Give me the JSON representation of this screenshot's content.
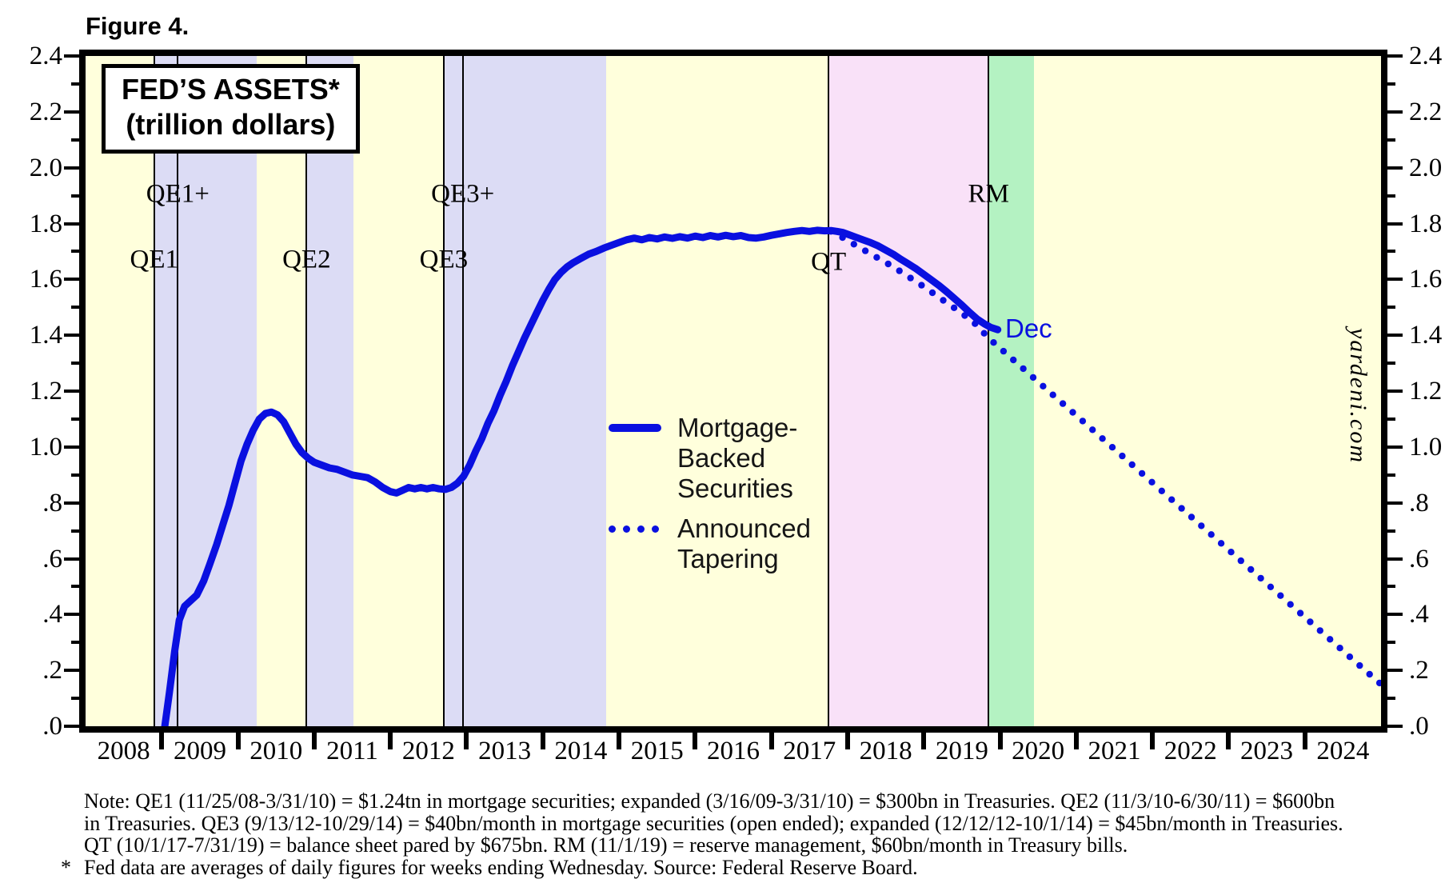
{
  "figure_label": "Figure 4.",
  "title_box": {
    "line1": "FED’S ASSETS*",
    "line2": "(trillion dollars)"
  },
  "watermark": "yardeni.com",
  "end_label": "Dec",
  "legend": {
    "items": [
      {
        "label": "Mortgage-Backed Securities",
        "style": "solid"
      },
      {
        "label": "Announced Tapering",
        "style": "dotted"
      }
    ]
  },
  "notes": {
    "line1": "Note: QE1 (11/25/08-3/31/10) = $1.24tn in mortgage securities; expanded (3/16/09-3/31/10) = $300bn in Treasuries. QE2 (11/3/10-6/30/11) = $600bn",
    "line2": "in Treasuries. QE3 (9/13/12-10/29/14) = $40bn/month in mortgage securities (open ended); expanded (12/12/12-10/1/14) = $45bn/month in Treasuries.",
    "line3": "QT (10/1/17-7/31/19) = balance sheet pared by $675bn. RM (11/1/19) = reserve management, $60bn/month in Treasury bills.",
    "marker": "*",
    "footnote": "Fed data are averages of daily figures for weeks ending Wednesday. Source: Federal Reserve Board."
  },
  "colors": {
    "line_blue": "#0a10e0",
    "band_yellow": "#ffffdc",
    "band_lavender": "#dcdcf5",
    "band_pink": "#f9e1f8",
    "band_green": "#b4f2c2",
    "axis_black": "#000000"
  },
  "chart_data": {
    "type": "line",
    "title": "FED’S ASSETS* (trillion dollars)",
    "x_axis": {
      "min": 2008,
      "max": 2025,
      "year_labels": [
        "2008",
        "2009",
        "2010",
        "2011",
        "2012",
        "2013",
        "2014",
        "2015",
        "2016",
        "2017",
        "2018",
        "2019",
        "2020",
        "2021",
        "2022",
        "2023",
        "2024"
      ]
    },
    "y_axis": {
      "min": 0,
      "max": 2.4,
      "major_step": 0.2,
      "minor_step": 0.1,
      "labels_top_to_bottom": [
        "2.4",
        "2.2",
        "2.0",
        "1.8",
        "1.6",
        "1.4",
        "1.2",
        "1.0",
        ".8",
        ".6",
        ".4",
        ".2",
        ".0"
      ]
    },
    "bands": [
      {
        "name": "QE1",
        "start": 2008.9,
        "end": 2010.25,
        "color_key": "band_lavender"
      },
      {
        "name": "QE2",
        "start": 2010.9,
        "end": 2011.52,
        "color_key": "band_lavender"
      },
      {
        "name": "QE3",
        "start": 2012.7,
        "end": 2014.83,
        "color_key": "band_lavender"
      },
      {
        "name": "QT",
        "start": 2017.75,
        "end": 2019.85,
        "color_key": "band_pink"
      },
      {
        "name": "RM",
        "start": 2019.85,
        "end": 2020.45,
        "color_key": "band_green"
      }
    ],
    "event_lines": [
      {
        "label": "QE1",
        "year": 2008.9,
        "label_y": 1.67
      },
      {
        "label": "QE1+",
        "year": 2009.21,
        "label_y": 1.905
      },
      {
        "label": "QE2",
        "year": 2010.9,
        "label_y": 1.67
      },
      {
        "label": "QE3",
        "year": 2012.7,
        "label_y": 1.67
      },
      {
        "label": "QE3+",
        "year": 2012.95,
        "label_y": 1.905
      },
      {
        "label": "QT",
        "year": 2017.75,
        "label_y": 1.66
      },
      {
        "label": "RM",
        "year": 2019.85,
        "label_y": 1.905
      }
    ],
    "series": [
      {
        "name": "Mortgage-Backed Securities",
        "style": "solid",
        "points": [
          [
            2009.04,
            0.0
          ],
          [
            2009.1,
            0.12
          ],
          [
            2009.17,
            0.27
          ],
          [
            2009.23,
            0.38
          ],
          [
            2009.3,
            0.43
          ],
          [
            2009.38,
            0.45
          ],
          [
            2009.46,
            0.47
          ],
          [
            2009.55,
            0.52
          ],
          [
            2009.63,
            0.58
          ],
          [
            2009.72,
            0.65
          ],
          [
            2009.8,
            0.72
          ],
          [
            2009.88,
            0.79
          ],
          [
            2009.96,
            0.87
          ],
          [
            2010.04,
            0.95
          ],
          [
            2010.12,
            1.01
          ],
          [
            2010.2,
            1.06
          ],
          [
            2010.28,
            1.1
          ],
          [
            2010.36,
            1.12
          ],
          [
            2010.44,
            1.125
          ],
          [
            2010.52,
            1.115
          ],
          [
            2010.6,
            1.09
          ],
          [
            2010.68,
            1.05
          ],
          [
            2010.76,
            1.01
          ],
          [
            2010.84,
            0.98
          ],
          [
            2010.92,
            0.96
          ],
          [
            2011.0,
            0.945
          ],
          [
            2011.1,
            0.935
          ],
          [
            2011.2,
            0.925
          ],
          [
            2011.3,
            0.92
          ],
          [
            2011.4,
            0.91
          ],
          [
            2011.5,
            0.9
          ],
          [
            2011.6,
            0.895
          ],
          [
            2011.7,
            0.89
          ],
          [
            2011.8,
            0.875
          ],
          [
            2011.9,
            0.855
          ],
          [
            2012.0,
            0.84
          ],
          [
            2012.08,
            0.835
          ],
          [
            2012.16,
            0.845
          ],
          [
            2012.24,
            0.855
          ],
          [
            2012.32,
            0.85
          ],
          [
            2012.4,
            0.855
          ],
          [
            2012.48,
            0.85
          ],
          [
            2012.56,
            0.855
          ],
          [
            2012.64,
            0.85
          ],
          [
            2012.72,
            0.848
          ],
          [
            2012.8,
            0.855
          ],
          [
            2012.88,
            0.87
          ],
          [
            2012.96,
            0.895
          ],
          [
            2013.04,
            0.935
          ],
          [
            2013.12,
            0.985
          ],
          [
            2013.2,
            1.03
          ],
          [
            2013.28,
            1.085
          ],
          [
            2013.36,
            1.13
          ],
          [
            2013.44,
            1.185
          ],
          [
            2013.52,
            1.235
          ],
          [
            2013.6,
            1.29
          ],
          [
            2013.68,
            1.34
          ],
          [
            2013.76,
            1.39
          ],
          [
            2013.84,
            1.435
          ],
          [
            2013.92,
            1.48
          ],
          [
            2014.0,
            1.525
          ],
          [
            2014.08,
            1.565
          ],
          [
            2014.16,
            1.6
          ],
          [
            2014.24,
            1.625
          ],
          [
            2014.32,
            1.645
          ],
          [
            2014.4,
            1.66
          ],
          [
            2014.5,
            1.675
          ],
          [
            2014.6,
            1.69
          ],
          [
            2014.7,
            1.7
          ],
          [
            2014.8,
            1.712
          ],
          [
            2014.9,
            1.722
          ],
          [
            2015.0,
            1.732
          ],
          [
            2015.1,
            1.742
          ],
          [
            2015.2,
            1.748
          ],
          [
            2015.3,
            1.742
          ],
          [
            2015.4,
            1.75
          ],
          [
            2015.5,
            1.745
          ],
          [
            2015.6,
            1.752
          ],
          [
            2015.7,
            1.747
          ],
          [
            2015.8,
            1.753
          ],
          [
            2015.9,
            1.748
          ],
          [
            2016.0,
            1.755
          ],
          [
            2016.1,
            1.75
          ],
          [
            2016.2,
            1.757
          ],
          [
            2016.3,
            1.752
          ],
          [
            2016.4,
            1.758
          ],
          [
            2016.5,
            1.753
          ],
          [
            2016.6,
            1.757
          ],
          [
            2016.7,
            1.75
          ],
          [
            2016.8,
            1.748
          ],
          [
            2016.9,
            1.752
          ],
          [
            2017.0,
            1.758
          ],
          [
            2017.1,
            1.763
          ],
          [
            2017.2,
            1.768
          ],
          [
            2017.3,
            1.772
          ],
          [
            2017.4,
            1.775
          ],
          [
            2017.5,
            1.772
          ],
          [
            2017.6,
            1.776
          ],
          [
            2017.7,
            1.774
          ],
          [
            2017.78,
            1.775
          ],
          [
            2017.86,
            1.772
          ],
          [
            2017.94,
            1.768
          ],
          [
            2018.02,
            1.76
          ],
          [
            2018.1,
            1.752
          ],
          [
            2018.2,
            1.742
          ],
          [
            2018.3,
            1.732
          ],
          [
            2018.4,
            1.72
          ],
          [
            2018.5,
            1.705
          ],
          [
            2018.6,
            1.69
          ],
          [
            2018.7,
            1.672
          ],
          [
            2018.8,
            1.655
          ],
          [
            2018.9,
            1.638
          ],
          [
            2019.0,
            1.618
          ],
          [
            2019.1,
            1.598
          ],
          [
            2019.2,
            1.578
          ],
          [
            2019.3,
            1.556
          ],
          [
            2019.4,
            1.532
          ],
          [
            2019.5,
            1.508
          ],
          [
            2019.6,
            1.482
          ],
          [
            2019.7,
            1.458
          ],
          [
            2019.8,
            1.44
          ],
          [
            2019.88,
            1.428
          ],
          [
            2019.97,
            1.42
          ]
        ]
      },
      {
        "name": "Announced Tapering",
        "style": "dotted",
        "points": [
          [
            2017.78,
            1.772
          ],
          [
            2017.9,
            1.755
          ],
          [
            2018.0,
            1.74
          ],
          [
            2018.15,
            1.715
          ],
          [
            2018.3,
            1.692
          ],
          [
            2018.45,
            1.668
          ],
          [
            2018.6,
            1.645
          ],
          [
            2018.75,
            1.618
          ],
          [
            2018.9,
            1.592
          ],
          [
            2019.05,
            1.565
          ],
          [
            2019.2,
            1.535
          ],
          [
            2019.35,
            1.508
          ],
          [
            2019.5,
            1.478
          ],
          [
            2019.65,
            1.448
          ],
          [
            2019.85,
            1.39
          ],
          [
            2025.0,
            0.15
          ]
        ]
      }
    ]
  }
}
